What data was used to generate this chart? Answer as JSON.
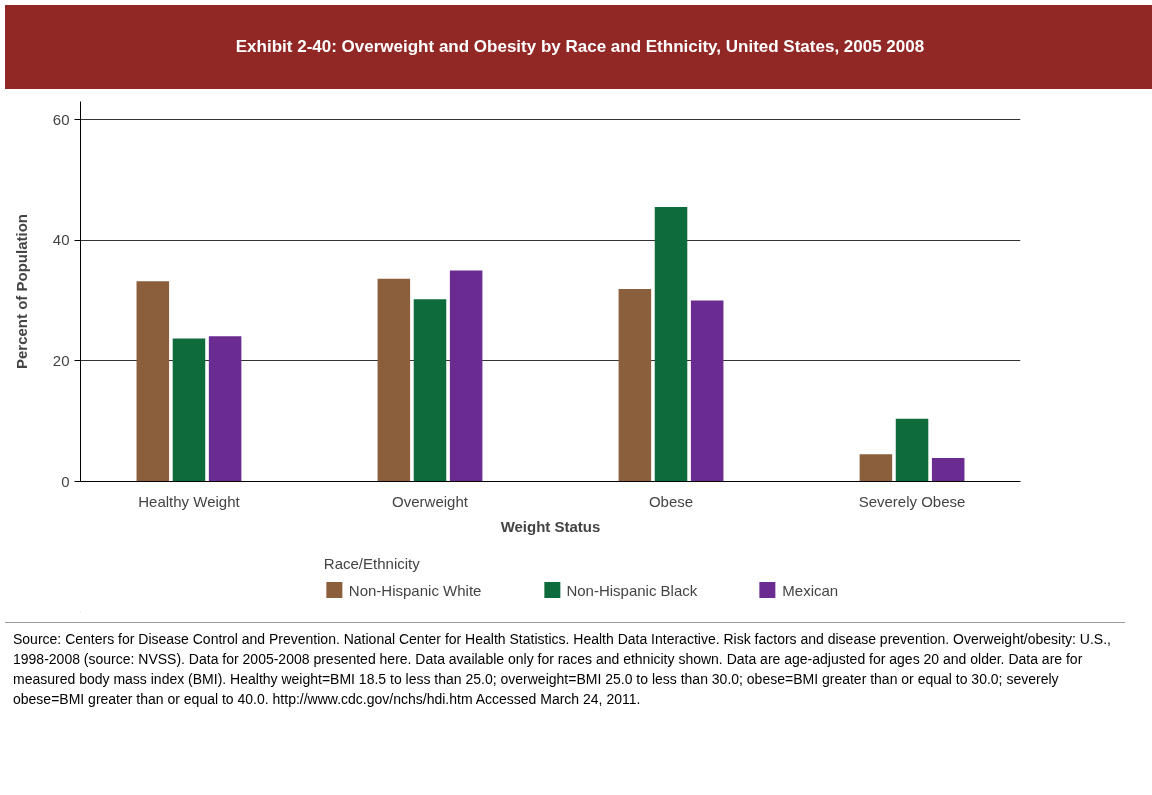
{
  "chart_data": {
    "type": "bar",
    "title": "Exhibit 2-40: Overweight and Obesity by Race and Ethnicity, United States, 2005  2008",
    "xlabel": "Weight Status",
    "ylabel": "Percent of Population",
    "legend_title": "Race/Ethnicity",
    "categories": [
      "Healthy Weight",
      "Overweight",
      "Obese",
      "Severely Obese"
    ],
    "series": [
      {
        "name": "Non-Hispanic White",
        "color": "#8b5e3c",
        "values": [
          33.2,
          33.6,
          31.9,
          4.5
        ]
      },
      {
        "name": "Non-Hispanic Black",
        "color": "#0e6b3c",
        "values": [
          23.7,
          30.2,
          45.5,
          10.4
        ]
      },
      {
        "name": "Mexican",
        "color": "#6a2c91",
        "values": [
          24.1,
          35.0,
          30.0,
          3.9
        ]
      }
    ],
    "ylim": [
      0,
      63
    ],
    "yticks": [
      0,
      20,
      40,
      60
    ],
    "grid": "y",
    "legend": "bottom",
    "annotations": [
      "Source: Centers for Disease Control and Prevention. National Center for Health Statistics. Health Data Interactive. Risk factors and disease prevention. Overweight/obesity: U.S., 1998-2008 (source: NVSS). Data for 2005-2008 presented here. Data available only for races and ethnicity shown. Data are age-adjusted for ages 20 and older. Data are for measured body mass index (BMI). Healthy weight=BMI 18.5 to less than 25.0; overweight=BMI 25.0 to less than 30.0; obese=BMI greater than or equal to 30.0; severely obese=BMI greater than or equal to 40.0. http://www.cdc.gov/nchs/hdi.htm  Accessed March 24, 2011."
    ]
  }
}
